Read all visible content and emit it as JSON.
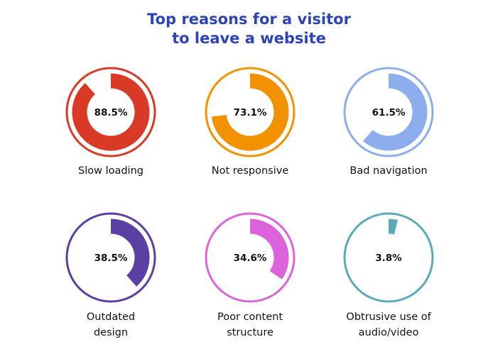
{
  "title_lines": [
    "Top reasons for a visitor",
    "to leave a website"
  ],
  "chart_data": {
    "type": "pie",
    "title": "Top reasons for a visitor to leave a website",
    "unit": "%",
    "items": [
      {
        "label_lines": [
          "Slow loading"
        ],
        "value": 88.5,
        "display": "88.5%",
        "color": "#d93a25"
      },
      {
        "label_lines": [
          "Not responsive"
        ],
        "value": 73.1,
        "display": "73.1%",
        "color": "#f39200"
      },
      {
        "label_lines": [
          "Bad navigation"
        ],
        "value": 61.5,
        "display": "61.5%",
        "color": "#8daeec"
      },
      {
        "label_lines": [
          "Outdated",
          "design"
        ],
        "value": 38.5,
        "display": "38.5%",
        "color": "#5b3fa3"
      },
      {
        "label_lines": [
          "Poor content",
          "structure"
        ],
        "value": 34.6,
        "display": "34.6%",
        "color": "#dc63dc"
      },
      {
        "label_lines": [
          "Obtrusive use of",
          "audio/video"
        ],
        "value": 3.8,
        "display": "3.8%",
        "color": "#5aaab8"
      }
    ]
  }
}
